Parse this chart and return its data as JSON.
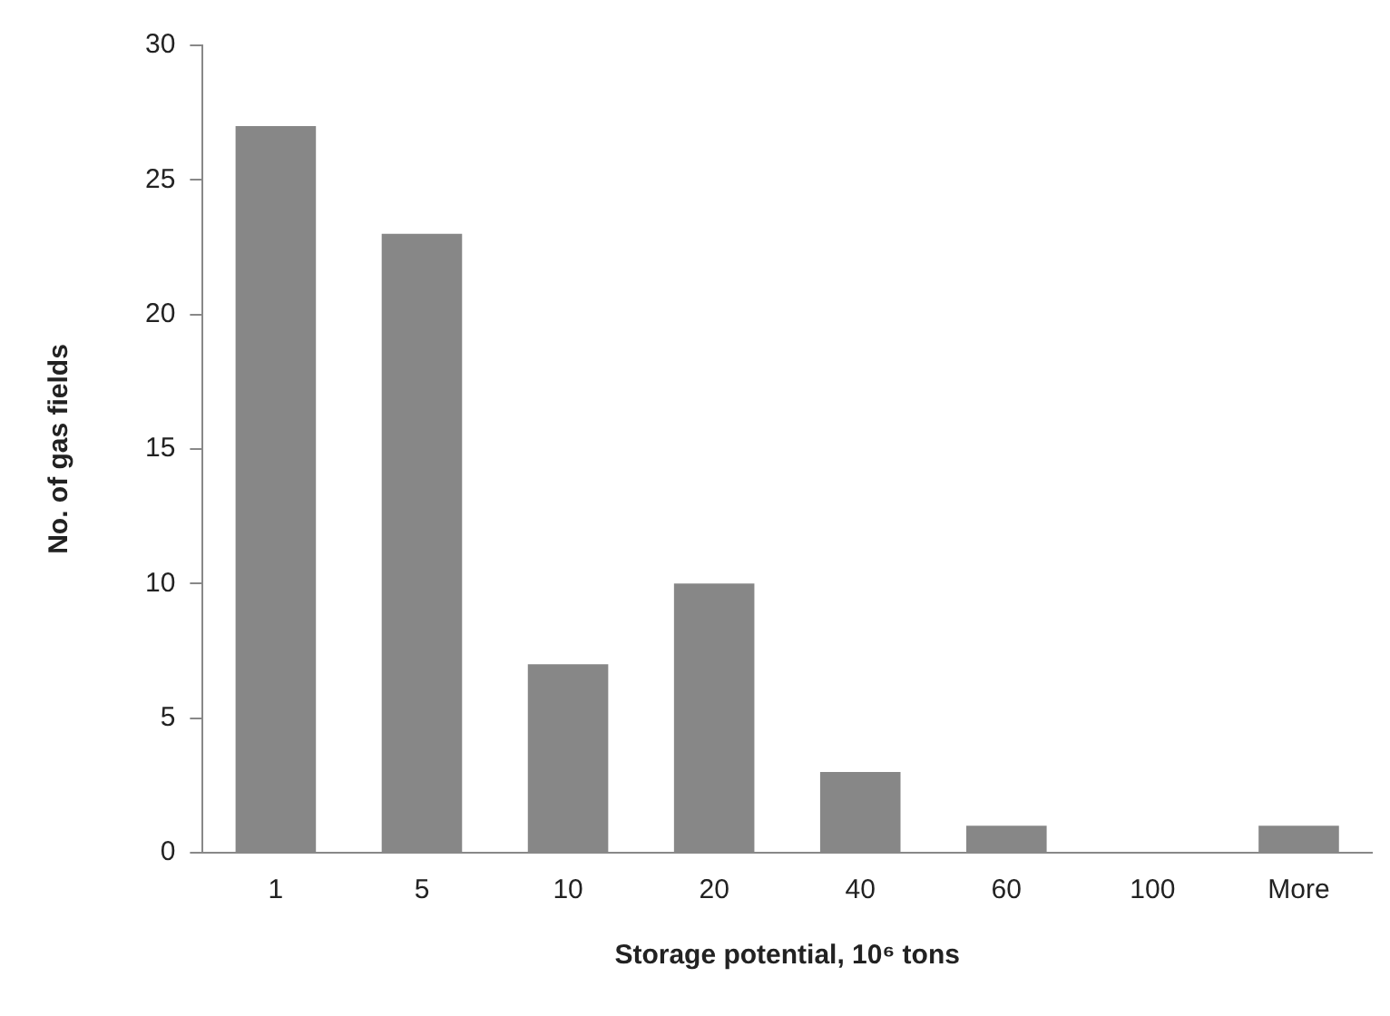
{
  "chart_data": {
    "type": "bar",
    "xlabel": "Storage potential, 10⁶ tons",
    "ylabel": "No. of gas fields",
    "categories": [
      "1",
      "5",
      "10",
      "20",
      "40",
      "60",
      "100",
      "More"
    ],
    "values": [
      27,
      23,
      7,
      10,
      3,
      1,
      0,
      1
    ],
    "color": "#878787",
    "ylim": [
      0,
      30
    ],
    "yticks": [
      0,
      5,
      10,
      15,
      20,
      25,
      30
    ],
    "grid": false,
    "legend": false
  }
}
